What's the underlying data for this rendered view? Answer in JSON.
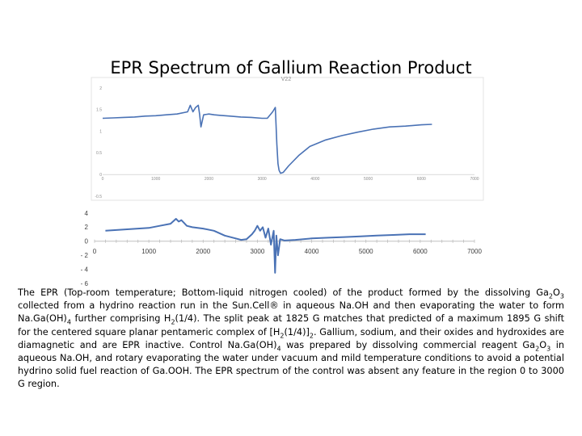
{
  "title": "EPR Spectrum of Gallium Reaction Product",
  "chart_data": [
    {
      "type": "line",
      "title": "V22",
      "xlim": [
        0,
        7000
      ],
      "ylim": [
        -0.5,
        2
      ],
      "xticks": [
        0,
        1000,
        2000,
        3000,
        4000,
        5000,
        6000,
        7000
      ],
      "yticks": [
        2,
        1.5,
        1,
        0.5,
        0,
        -0.5
      ],
      "ytick_labels": [
        "2",
        "1.5",
        "1",
        "0.5",
        "0",
        "-0.5"
      ],
      "grid": false,
      "colors": {
        "series": "#4a72b5",
        "axis": "#d9d9d9",
        "tick_text": "#8c8c8c"
      },
      "series": [
        {
          "x": [
            0,
            200,
            400,
            600,
            800,
            1000,
            1200,
            1400,
            1600,
            1650,
            1700,
            1750,
            1800,
            1825,
            1850,
            1900,
            2000,
            2100,
            2200,
            2400,
            2600,
            2800,
            3000,
            3100,
            3200,
            3250,
            3280,
            3300,
            3320,
            3350,
            3400,
            3500,
            3700,
            3900,
            4200,
            4500,
            4800,
            5100,
            5400,
            5700,
            6000,
            6200
          ],
          "y": [
            1.3,
            1.31,
            1.32,
            1.33,
            1.35,
            1.36,
            1.38,
            1.4,
            1.45,
            1.6,
            1.45,
            1.55,
            1.6,
            1.4,
            1.1,
            1.38,
            1.4,
            1.38,
            1.37,
            1.35,
            1.33,
            1.32,
            1.3,
            1.3,
            1.45,
            1.55,
            0.7,
            0.25,
            0.1,
            0.03,
            0.05,
            0.2,
            0.45,
            0.65,
            0.8,
            0.9,
            0.98,
            1.05,
            1.1,
            1.12,
            1.15,
            1.16
          ]
        }
      ]
    },
    {
      "type": "line",
      "xlim": [
        0,
        7000
      ],
      "ylim": [
        -6,
        4
      ],
      "xticks": [
        0,
        1000,
        2000,
        3000,
        4000,
        5000,
        6000,
        7000
      ],
      "yticks": [
        4,
        2,
        0,
        -2,
        -4,
        -6
      ],
      "ytick_labels": [
        "4",
        "2",
        "0",
        "- 2",
        "- 4",
        "- 6"
      ],
      "grid": false,
      "colors": {
        "series": "#4a72b5",
        "axis": "#bfbfbf",
        "tick_text": "#404040"
      },
      "series": [
        {
          "x": [
            200,
            400,
            600,
            800,
            1000,
            1200,
            1400,
            1500,
            1550,
            1600,
            1650,
            1700,
            1800,
            2000,
            2200,
            2400,
            2600,
            2700,
            2800,
            2900,
            2950,
            3000,
            3050,
            3100,
            3150,
            3200,
            3250,
            3300,
            3325,
            3350,
            3380,
            3420,
            3500,
            3700,
            4000,
            4300,
            4600,
            4900,
            5200,
            5500,
            5800,
            6100
          ],
          "y": [
            1.5,
            1.6,
            1.7,
            1.8,
            1.9,
            2.2,
            2.5,
            3.2,
            2.8,
            3.0,
            2.6,
            2.2,
            2.0,
            1.8,
            1.5,
            0.8,
            0.4,
            0.2,
            0.3,
            1.0,
            1.5,
            2.2,
            1.5,
            2.0,
            0.5,
            1.8,
            -0.5,
            1.5,
            -4.5,
            0.8,
            -2.0,
            0.3,
            0.1,
            0.2,
            0.4,
            0.5,
            0.6,
            0.7,
            0.8,
            0.9,
            1.0,
            1.0
          ]
        }
      ]
    }
  ],
  "caption": {
    "p1": "The EPR (Top-room temperature; Bottom-liquid nitrogen cooled) of the product formed by the dissolving Ga",
    "s1": "2",
    "p2": "O",
    "s2": "3",
    "p3": " collected from a hydrino reaction run in the Sun.Cell® in aqueous Na.OH and then evaporating the water to form Na.Ga(OH)",
    "s3": "4",
    "p4": " further comprising H",
    "s4": "2",
    "p5": "(1/4). The split peak at 1825 G matches that predicted of a maximum 1895 G shift for the centered square planar pentameric complex of [H",
    "s5": "2",
    "p6": "(1/4)]",
    "s6": "2",
    "p7": ". Gallium, sodium, and their oxides and hydroxides are diamagnetic and are EPR inactive. Control Na.Ga(OH)",
    "s7": "4",
    "p8": " was prepared by dissolving commercial reagent Ga",
    "s8": "2",
    "p9": "O",
    "s9": "3",
    "p10": " in aqueous Na.OH, and rotary evaporating the water under vacuum and mild temperature conditions to avoid a potential hydrino solid fuel reaction of Ga.OOH. The EPR spectrum of the control was absent any feature in the region 0 to 3000 G region."
  }
}
